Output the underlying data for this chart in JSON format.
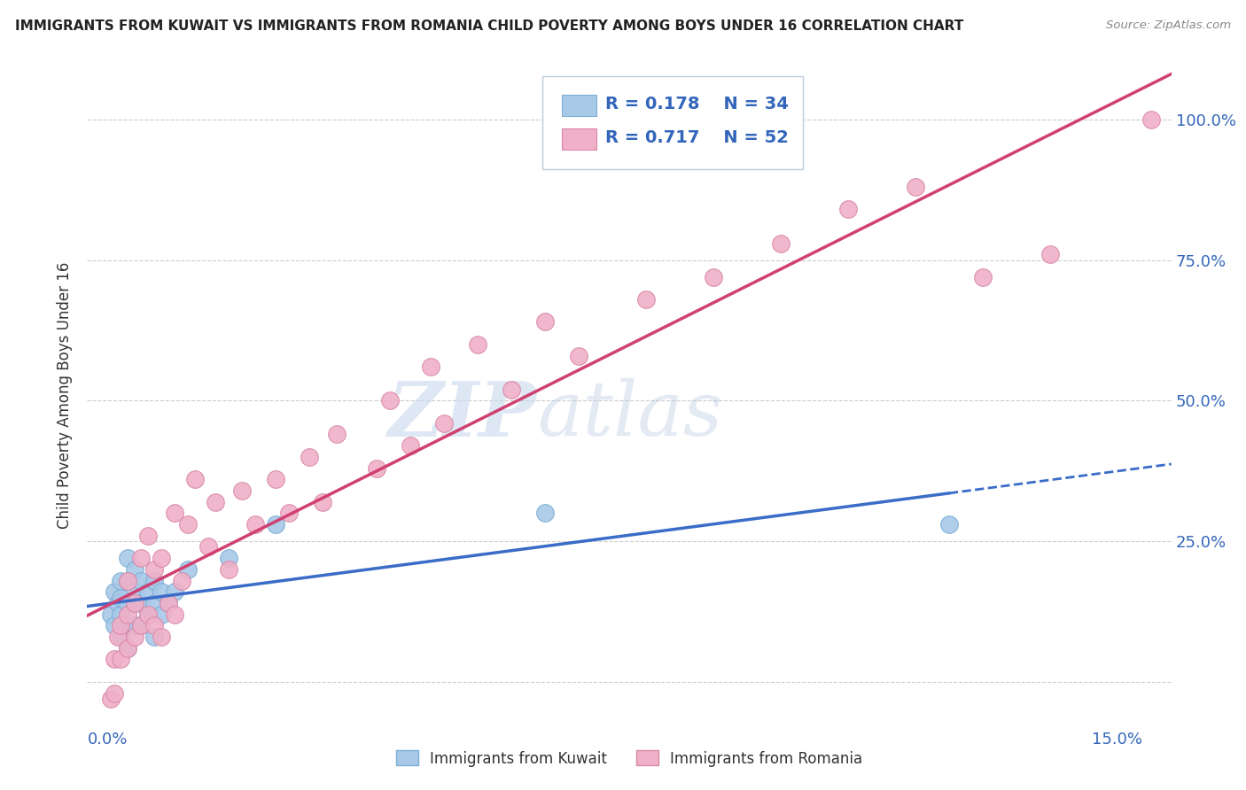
{
  "title": "IMMIGRANTS FROM KUWAIT VS IMMIGRANTS FROM ROMANIA CHILD POVERTY AMONG BOYS UNDER 16 CORRELATION CHART",
  "source": "Source: ZipAtlas.com",
  "ylabel": "Child Poverty Among Boys Under 16",
  "xlim": [
    -0.003,
    0.158
  ],
  "ylim": [
    -0.08,
    1.1
  ],
  "kuwait_color": "#a8c8e8",
  "kuwait_edge": "#7aaed4",
  "kuwait_line_color": "#3a6cc8",
  "romania_color": "#f0b0c8",
  "romania_edge": "#d888a8",
  "romania_line_color": "#d04070",
  "watermark_zip": "ZIP",
  "watermark_atlas": "atlas",
  "kuwait_scatter_x": [
    0.0005,
    0.001,
    0.001,
    0.0015,
    0.002,
    0.002,
    0.002,
    0.002,
    0.003,
    0.003,
    0.003,
    0.003,
    0.003,
    0.004,
    0.004,
    0.004,
    0.004,
    0.005,
    0.005,
    0.005,
    0.006,
    0.006,
    0.007,
    0.007,
    0.007,
    0.008,
    0.008,
    0.009,
    0.01,
    0.012,
    0.018,
    0.025,
    0.065,
    0.125
  ],
  "kuwait_scatter_y": [
    0.12,
    0.1,
    0.16,
    0.14,
    0.08,
    0.12,
    0.15,
    0.18,
    0.06,
    0.1,
    0.14,
    0.18,
    0.22,
    0.1,
    0.14,
    0.16,
    0.2,
    0.1,
    0.14,
    0.18,
    0.12,
    0.16,
    0.08,
    0.14,
    0.18,
    0.12,
    0.16,
    0.14,
    0.16,
    0.2,
    0.22,
    0.28,
    0.3,
    0.28
  ],
  "romania_scatter_x": [
    0.0005,
    0.001,
    0.001,
    0.0015,
    0.002,
    0.002,
    0.003,
    0.003,
    0.003,
    0.004,
    0.004,
    0.005,
    0.005,
    0.006,
    0.006,
    0.007,
    0.007,
    0.008,
    0.008,
    0.009,
    0.01,
    0.01,
    0.011,
    0.012,
    0.013,
    0.015,
    0.016,
    0.018,
    0.02,
    0.022,
    0.025,
    0.027,
    0.03,
    0.032,
    0.034,
    0.04,
    0.042,
    0.045,
    0.048,
    0.05,
    0.055,
    0.06,
    0.065,
    0.07,
    0.08,
    0.09,
    0.1,
    0.11,
    0.12,
    0.13,
    0.14,
    0.155
  ],
  "romania_scatter_y": [
    -0.03,
    -0.02,
    0.04,
    0.08,
    0.04,
    0.1,
    0.06,
    0.12,
    0.18,
    0.08,
    0.14,
    0.1,
    0.22,
    0.12,
    0.26,
    0.1,
    0.2,
    0.08,
    0.22,
    0.14,
    0.12,
    0.3,
    0.18,
    0.28,
    0.36,
    0.24,
    0.32,
    0.2,
    0.34,
    0.28,
    0.36,
    0.3,
    0.4,
    0.32,
    0.44,
    0.38,
    0.5,
    0.42,
    0.56,
    0.46,
    0.6,
    0.52,
    0.64,
    0.58,
    0.68,
    0.72,
    0.78,
    0.84,
    0.88,
    0.72,
    0.76,
    1.0
  ],
  "legend_r_kuwait": "R = 0.178",
  "legend_n_kuwait": "N = 34",
  "legend_r_romania": "R = 0.717",
  "legend_n_romania": "N = 52"
}
